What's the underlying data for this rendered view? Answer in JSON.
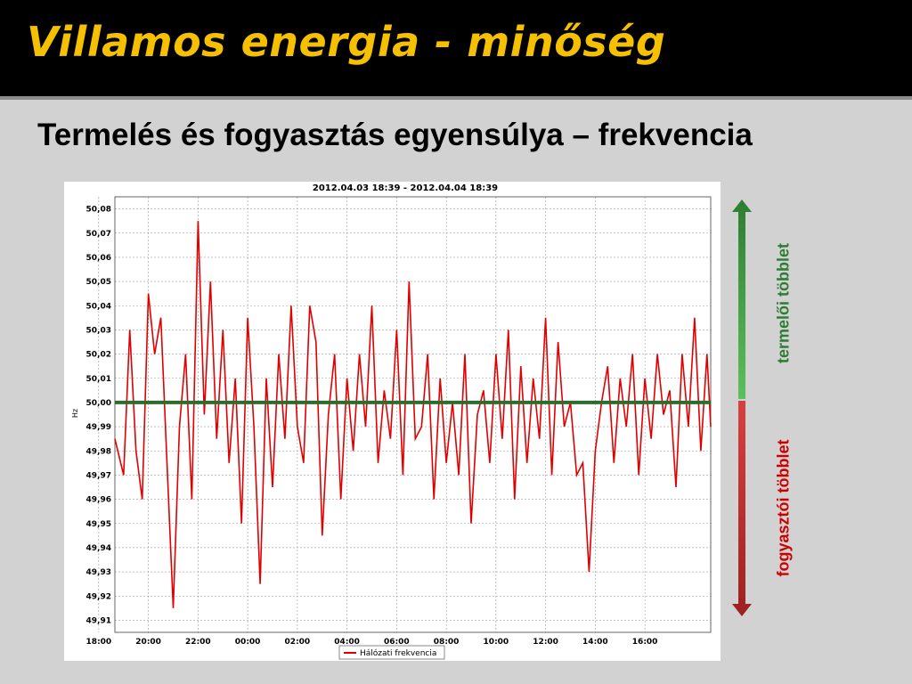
{
  "slide": {
    "title": "Villamos energia - minőség",
    "subtitle": "Termelés és fogyasztás egyensúlya – frekvencia"
  },
  "side": {
    "up_label": "termelői többlet",
    "down_label": "fogyasztói többlet",
    "up_color": "#3c9a3c",
    "down_color": "#c03030"
  },
  "chart_data": {
    "type": "line",
    "title": "2012.04.03 18:39  -  2012.04.04 18:39",
    "xlabel": "",
    "ylabel": "Hz",
    "ylim": [
      49.905,
      50.085
    ],
    "xlim_hours": [
      18.65,
      42.65
    ],
    "grid": true,
    "legend": "bottom-center",
    "y_ticks": [
      "50,08",
      "50,07",
      "50,06",
      "50,05",
      "50,04",
      "50,03",
      "50,02",
      "50,01",
      "50,00",
      "49,99",
      "49,98",
      "49,97",
      "49,96",
      "49,95",
      "49,94",
      "49,93",
      "49,92",
      "49,91"
    ],
    "x_ticks": [
      "20:00",
      "22:00",
      "00:00",
      "02:00",
      "04:00",
      "06:00",
      "08:00",
      "10:00",
      "12:00",
      "14:00",
      "16:00",
      "18:00"
    ],
    "reference_line": 50.0,
    "reference_color": "#2e6b2e",
    "series": [
      {
        "name": "Hálózati frekvencia",
        "color": "#e00000",
        "x": [
          18.65,
          19.0,
          19.25,
          19.5,
          19.75,
          20.0,
          20.25,
          20.5,
          20.75,
          21.0,
          21.25,
          21.5,
          21.75,
          22.0,
          22.25,
          22.5,
          22.75,
          23.0,
          23.25,
          23.5,
          23.75,
          24.0,
          24.25,
          24.5,
          24.75,
          25.0,
          25.25,
          25.5,
          25.75,
          26.0,
          26.25,
          26.5,
          26.75,
          27.0,
          27.25,
          27.5,
          27.75,
          28.0,
          28.25,
          28.5,
          28.75,
          29.0,
          29.25,
          29.5,
          29.75,
          30.0,
          30.25,
          30.5,
          30.75,
          31.0,
          31.25,
          31.5,
          31.75,
          32.0,
          32.25,
          32.5,
          32.75,
          33.0,
          33.25,
          33.5,
          33.75,
          34.0,
          34.25,
          34.5,
          34.75,
          35.0,
          35.25,
          35.5,
          35.75,
          36.0,
          36.25,
          36.5,
          36.75,
          37.0,
          37.25,
          37.5,
          37.75,
          38.0,
          38.25,
          38.5,
          38.75,
          39.0,
          39.25,
          39.5,
          39.75,
          40.0,
          40.25,
          40.5,
          40.75,
          41.0,
          41.25,
          41.5,
          41.75,
          42.0,
          42.25,
          42.5,
          42.65
        ],
        "values": [
          49.985,
          49.97,
          50.03,
          49.98,
          49.96,
          50.045,
          50.02,
          50.035,
          49.975,
          49.915,
          49.99,
          50.02,
          49.96,
          50.075,
          49.995,
          50.05,
          49.985,
          50.03,
          49.975,
          50.01,
          49.95,
          50.035,
          49.99,
          49.925,
          50.01,
          49.965,
          50.02,
          49.985,
          50.04,
          49.99,
          49.975,
          50.04,
          50.025,
          49.945,
          49.995,
          50.02,
          49.96,
          50.01,
          49.98,
          50.02,
          49.99,
          50.04,
          49.975,
          50.005,
          49.985,
          50.03,
          49.97,
          50.05,
          49.985,
          49.99,
          50.02,
          49.96,
          50.01,
          49.975,
          50.0,
          49.97,
          50.02,
          49.95,
          49.995,
          50.005,
          49.975,
          50.02,
          49.985,
          50.03,
          49.96,
          50.015,
          49.975,
          50.01,
          49.985,
          50.035,
          49.97,
          50.025,
          49.99,
          50.0,
          49.97,
          49.975,
          49.93,
          49.98,
          50.0,
          50.015,
          49.975,
          50.01,
          49.99,
          50.02,
          49.97,
          50.01,
          49.985,
          50.02,
          49.995,
          50.005,
          49.965,
          50.02,
          49.99,
          50.035,
          49.98,
          50.02,
          49.99
        ]
      }
    ]
  }
}
